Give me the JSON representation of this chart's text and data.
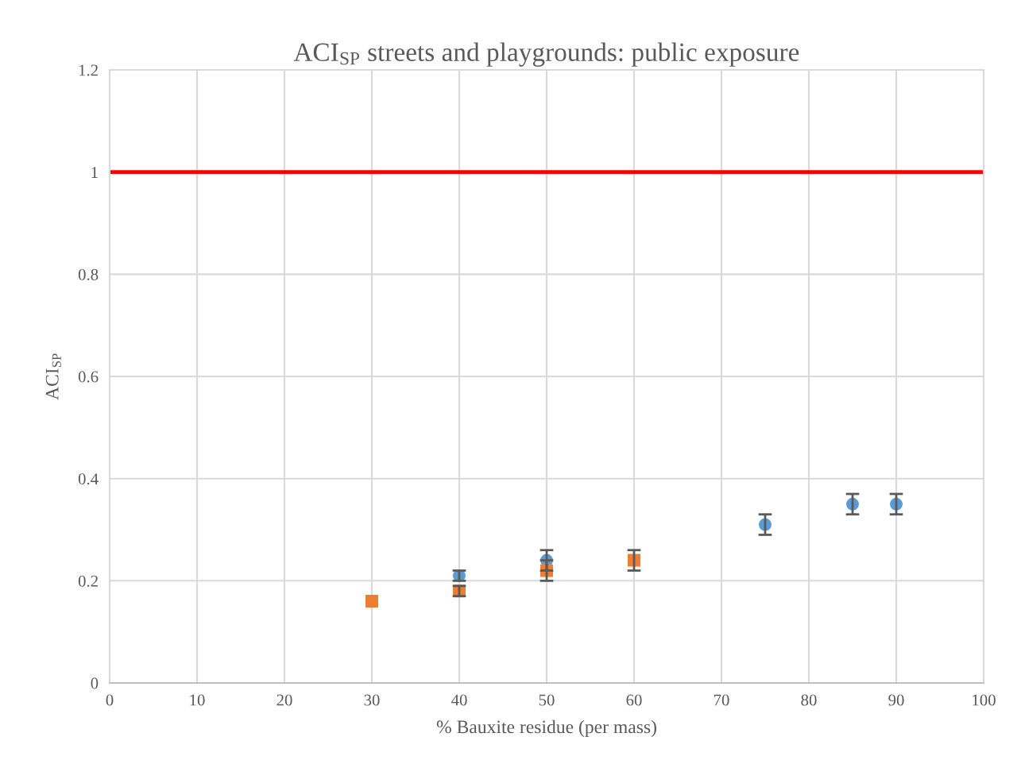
{
  "chart_data": {
    "type": "scatter",
    "title": "ACI$_{SP}$ streets and playgrounds: public exposure",
    "xlabel": "% Bauxite residue (per mass)",
    "ylabel": "ACI$_{SP}$",
    "series": [
      {
        "color": "#5b9bd5",
        "marker": "circle",
        "x": [
          40,
          50,
          75,
          85,
          90
        ],
        "values": [
          0.21,
          0.24,
          0.31,
          0.35,
          0.35
        ],
        "errors": [
          0.01,
          0.02,
          0.02,
          0.02,
          0.02
        ]
      },
      {
        "color": "#ed7d31",
        "marker": "square",
        "x": [
          30,
          40,
          50,
          60
        ],
        "values": [
          0.16,
          0.18,
          0.22,
          0.24
        ],
        "errors": [
          null,
          0.01,
          0.02,
          0.02
        ]
      }
    ],
    "xlim": [
      0,
      100
    ],
    "xticks": [
      0,
      10,
      20,
      30,
      40,
      50,
      60,
      70,
      80,
      90,
      100
    ],
    "ylim": [
      0,
      1.2
    ],
    "yticks": [
      0,
      0.2,
      0.4,
      0.6,
      0.8,
      1,
      1.2
    ],
    "ref_lines": [
      {
        "axis": "y",
        "value": 1,
        "color": "#ff0000"
      }
    ],
    "grid": true
  }
}
